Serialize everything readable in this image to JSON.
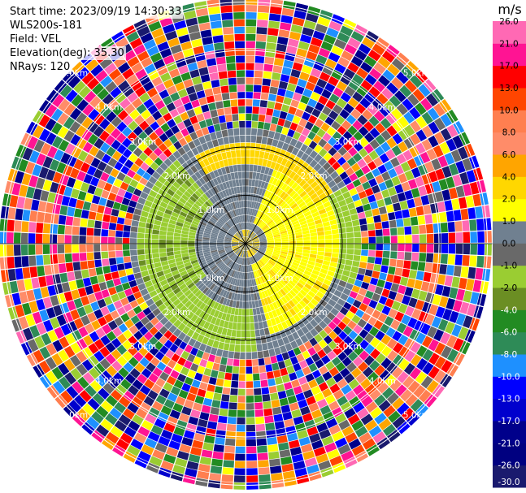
{
  "header": {
    "start_time": "Start time: 2023/09/19 14:30:33",
    "instrument": "WLS200s-181",
    "field": "Field: VEL",
    "elevation": "Elevation(deg): 35.30",
    "nrays": "NRays: 120"
  },
  "colorbar": {
    "unit": "m/s",
    "colors": [
      "#1a1a6e",
      "#000080",
      "#00008b",
      "#0000cd",
      "#0000ff",
      "#1e90ff",
      "#2e8b57",
      "#228b22",
      "#6b8e23",
      "#9acd32",
      "#696969",
      "#708090",
      "#ffff00",
      "#ffd700",
      "#ffa500",
      "#ff8c69",
      "#ff7f50",
      "#ff4500",
      "#ff0000",
      "#ff1493",
      "#ff69b4"
    ],
    "tick_labels": [
      "-30.0",
      "-26.0",
      "-21.0",
      "-17.0",
      "-13.0",
      "-10.0",
      "-8.0",
      "-6.0",
      "-4.0",
      "-2.0",
      "-1.0",
      "0.0",
      "1.0",
      "2.0",
      "4.0",
      "6.0",
      "8.0",
      "10.0",
      "13.0",
      "17.0",
      "21.0",
      "26.0"
    ]
  },
  "chart_data": {
    "type": "heatmap",
    "projection": "polar PPI",
    "field": "VEL",
    "unit": "m/s",
    "nrays": 120,
    "elevation_deg": 35.3,
    "value_range": [
      -30.0,
      26.0
    ],
    "grid": true,
    "range_ring_labels": [
      "1.0km",
      "2.0km",
      "3.0km",
      "4.0km",
      "5.0km"
    ],
    "pattern": {
      "gate_count": 34,
      "rings_km": [
        1,
        2,
        3,
        4,
        5
      ],
      "max_range_km": 5.1,
      "coherent_range_km": 2.4,
      "noise_palette": [
        "#ff1493",
        "#ff69b4",
        "#0000ff",
        "#0000cd",
        "#00008b",
        "#1a1a6e",
        "#ff0000",
        "#ffff00",
        "#ff4500",
        "#ff7f50",
        "#ffa500",
        "#9acd32",
        "#228b22",
        "#1e90ff",
        "#2e8b57",
        "#696969",
        "#ff8c69"
      ]
    }
  }
}
